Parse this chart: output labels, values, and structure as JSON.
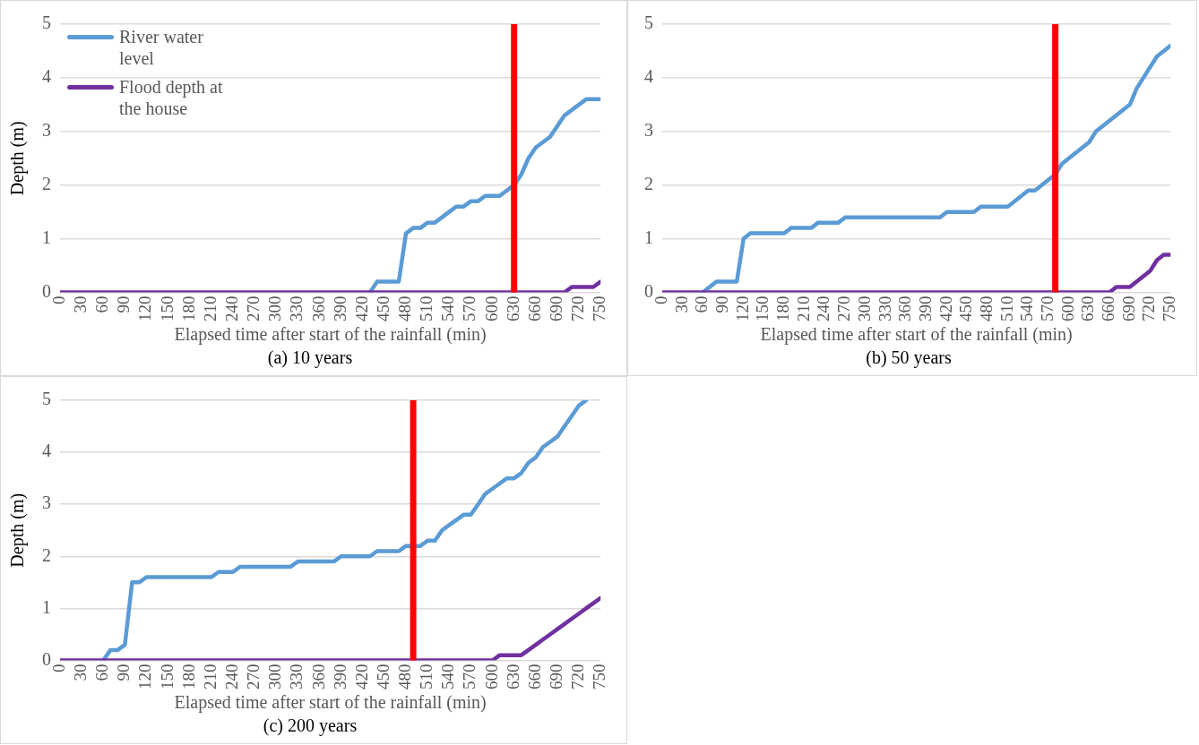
{
  "chart_data": [
    {
      "type": "line",
      "title": "(a) 10 years",
      "xlabel": "Elapsed time after start of the rainfall (min)",
      "ylabel": "Depth (m)",
      "x": [
        0,
        10,
        20,
        30,
        40,
        50,
        60,
        70,
        80,
        90,
        100,
        110,
        120,
        130,
        140,
        150,
        160,
        170,
        180,
        190,
        200,
        210,
        220,
        230,
        240,
        250,
        260,
        270,
        280,
        290,
        300,
        310,
        320,
        330,
        340,
        350,
        360,
        370,
        380,
        390,
        400,
        410,
        420,
        430,
        440,
        450,
        460,
        470,
        480,
        490,
        500,
        510,
        520,
        530,
        540,
        550,
        560,
        570,
        580,
        590,
        600,
        610,
        620,
        630,
        640,
        650,
        660,
        670,
        680,
        690,
        700,
        710,
        720,
        730,
        740,
        750
      ],
      "series": [
        {
          "name": "River water level",
          "color": "#5b9bd5",
          "values": [
            null,
            null,
            null,
            null,
            null,
            null,
            null,
            null,
            null,
            null,
            null,
            null,
            null,
            null,
            null,
            null,
            null,
            null,
            null,
            null,
            null,
            null,
            null,
            null,
            null,
            null,
            null,
            null,
            null,
            null,
            null,
            null,
            null,
            null,
            null,
            null,
            null,
            null,
            null,
            null,
            null,
            null,
            null,
            0,
            0.2,
            0.2,
            0.2,
            0.2,
            1.1,
            1.2,
            1.2,
            1.3,
            1.3,
            1.4,
            1.5,
            1.6,
            1.6,
            1.7,
            1.7,
            1.8,
            1.8,
            1.8,
            1.9,
            2.0,
            2.2,
            2.5,
            2.7,
            2.8,
            2.9,
            3.1,
            3.3,
            3.4,
            3.5,
            3.6,
            3.6,
            3.6
          ]
        },
        {
          "name": "Flood depth at the house",
          "color": "#7030a0",
          "values": [
            0,
            0,
            0,
            0,
            0,
            0,
            0,
            0,
            0,
            0,
            0,
            0,
            0,
            0,
            0,
            0,
            0,
            0,
            0,
            0,
            0,
            0,
            0,
            0,
            0,
            0,
            0,
            0,
            0,
            0,
            0,
            0,
            0,
            0,
            0,
            0,
            0,
            0,
            0,
            0,
            0,
            0,
            0,
            0,
            0,
            0,
            0,
            0,
            0,
            0,
            0,
            0,
            0,
            0,
            0,
            0,
            0,
            0,
            0,
            0,
            0,
            0,
            0,
            0,
            0,
            0,
            0,
            0,
            0,
            0,
            0,
            0.1,
            0.1,
            0.1,
            0.1,
            0.2
          ]
        }
      ],
      "xlim": [
        0,
        750
      ],
      "xticks": [
        0,
        30,
        60,
        90,
        120,
        150,
        180,
        210,
        240,
        270,
        300,
        330,
        360,
        390,
        420,
        450,
        480,
        510,
        540,
        570,
        600,
        630,
        660,
        690,
        720,
        750
      ],
      "ylim": [
        0,
        5
      ],
      "yticks": [
        0,
        1,
        2,
        3,
        4,
        5
      ],
      "grid": "y",
      "legend": "top left",
      "ref_lines": [
        {
          "axis": "x",
          "value": 630,
          "color": "#ff0000"
        }
      ]
    },
    {
      "type": "line",
      "title": "(b) 50 years",
      "xlabel": "Elapsed time after start of the rainfall (min)",
      "x": [
        0,
        10,
        20,
        30,
        40,
        50,
        60,
        70,
        80,
        90,
        100,
        110,
        120,
        130,
        140,
        150,
        160,
        170,
        180,
        190,
        200,
        210,
        220,
        230,
        240,
        250,
        260,
        270,
        280,
        290,
        300,
        310,
        320,
        330,
        340,
        350,
        360,
        370,
        380,
        390,
        400,
        410,
        420,
        430,
        440,
        450,
        460,
        470,
        480,
        490,
        500,
        510,
        520,
        530,
        540,
        550,
        560,
        570,
        580,
        590,
        600,
        610,
        620,
        630,
        640,
        650,
        660,
        670,
        680,
        690,
        700,
        710,
        720,
        730,
        740,
        750
      ],
      "series": [
        {
          "color": "#5b9bd5",
          "values": [
            null,
            null,
            null,
            null,
            null,
            null,
            0,
            0.1,
            0.2,
            0.2,
            0.2,
            0.2,
            1.0,
            1.1,
            1.1,
            1.1,
            1.1,
            1.1,
            1.1,
            1.2,
            1.2,
            1.2,
            1.2,
            1.3,
            1.3,
            1.3,
            1.3,
            1.4,
            1.4,
            1.4,
            1.4,
            1.4,
            1.4,
            1.4,
            1.4,
            1.4,
            1.4,
            1.4,
            1.4,
            1.4,
            1.4,
            1.4,
            1.5,
            1.5,
            1.5,
            1.5,
            1.5,
            1.6,
            1.6,
            1.6,
            1.6,
            1.6,
            1.7,
            1.8,
            1.9,
            1.9,
            2.0,
            2.1,
            2.2,
            2.4,
            2.5,
            2.6,
            2.7,
            2.8,
            3.0,
            3.1,
            3.2,
            3.3,
            3.4,
            3.5,
            3.8,
            4.0,
            4.2,
            4.4,
            4.5,
            4.6
          ]
        },
        {
          "color": "#7030a0",
          "values": [
            0,
            0,
            0,
            0,
            0,
            0,
            0,
            0,
            0,
            0,
            0,
            0,
            0,
            0,
            0,
            0,
            0,
            0,
            0,
            0,
            0,
            0,
            0,
            0,
            0,
            0,
            0,
            0,
            0,
            0,
            0,
            0,
            0,
            0,
            0,
            0,
            0,
            0,
            0,
            0,
            0,
            0,
            0,
            0,
            0,
            0,
            0,
            0,
            0,
            0,
            0,
            0,
            0,
            0,
            0,
            0,
            0,
            0,
            0,
            0,
            0,
            0,
            0,
            0,
            0,
            0,
            0,
            0.1,
            0.1,
            0.1,
            0.2,
            0.3,
            0.4,
            0.6,
            0.7,
            0.7
          ]
        }
      ],
      "xlim": [
        0,
        750
      ],
      "xticks": [
        0,
        30,
        60,
        90,
        120,
        150,
        180,
        210,
        240,
        270,
        300,
        330,
        360,
        390,
        420,
        450,
        480,
        510,
        540,
        570,
        600,
        630,
        660,
        690,
        720,
        750
      ],
      "ylim": [
        0,
        5
      ],
      "yticks": [
        0,
        1,
        2,
        3,
        4,
        5
      ],
      "grid": "y",
      "ref_lines": [
        {
          "axis": "x",
          "value": 580,
          "color": "#ff0000"
        }
      ]
    },
    {
      "type": "line",
      "title": "(c) 200 years",
      "xlabel": "Elapsed time after start of the rainfall (min)",
      "ylabel": "Depth (m)",
      "x": [
        0,
        10,
        20,
        30,
        40,
        50,
        60,
        70,
        80,
        90,
        100,
        110,
        120,
        130,
        140,
        150,
        160,
        170,
        180,
        190,
        200,
        210,
        220,
        230,
        240,
        250,
        260,
        270,
        280,
        290,
        300,
        310,
        320,
        330,
        340,
        350,
        360,
        370,
        380,
        390,
        400,
        410,
        420,
        430,
        440,
        450,
        460,
        470,
        480,
        490,
        500,
        510,
        520,
        530,
        540,
        550,
        560,
        570,
        580,
        590,
        600,
        610,
        620,
        630,
        640,
        650,
        660,
        670,
        680,
        690,
        700,
        710,
        720,
        730,
        740,
        750
      ],
      "series": [
        {
          "color": "#5b9bd5",
          "values": [
            null,
            null,
            null,
            null,
            null,
            null,
            0,
            0.2,
            0.2,
            0.3,
            1.5,
            1.5,
            1.6,
            1.6,
            1.6,
            1.6,
            1.6,
            1.6,
            1.6,
            1.6,
            1.6,
            1.6,
            1.7,
            1.7,
            1.7,
            1.8,
            1.8,
            1.8,
            1.8,
            1.8,
            1.8,
            1.8,
            1.8,
            1.9,
            1.9,
            1.9,
            1.9,
            1.9,
            1.9,
            2.0,
            2.0,
            2.0,
            2.0,
            2.0,
            2.1,
            2.1,
            2.1,
            2.1,
            2.2,
            2.2,
            2.2,
            2.3,
            2.3,
            2.5,
            2.6,
            2.7,
            2.8,
            2.8,
            3.0,
            3.2,
            3.3,
            3.4,
            3.5,
            3.5,
            3.6,
            3.8,
            3.9,
            4.1,
            4.2,
            4.3,
            4.5,
            4.7,
            4.9,
            5.0,
            null,
            null
          ]
        },
        {
          "color": "#7030a0",
          "values": [
            0,
            0,
            0,
            0,
            0,
            0,
            0,
            0,
            0,
            0,
            0,
            0,
            0,
            0,
            0,
            0,
            0,
            0,
            0,
            0,
            0,
            0,
            0,
            0,
            0,
            0,
            0,
            0,
            0,
            0,
            0,
            0,
            0,
            0,
            0,
            0,
            0,
            0,
            0,
            0,
            0,
            0,
            0,
            0,
            0,
            0,
            0,
            0,
            0,
            0,
            0,
            0,
            0,
            0,
            0,
            0,
            0,
            0,
            0,
            0,
            0,
            0.1,
            0.1,
            0.1,
            0.1,
            0.2,
            0.3,
            0.4,
            0.5,
            0.6,
            0.7,
            0.8,
            0.9,
            1.0,
            1.1,
            1.2
          ]
        }
      ],
      "xlim": [
        0,
        750
      ],
      "xticks": [
        0,
        30,
        60,
        90,
        120,
        150,
        180,
        210,
        240,
        270,
        300,
        330,
        360,
        390,
        420,
        450,
        480,
        510,
        540,
        570,
        600,
        630,
        660,
        690,
        720,
        750
      ],
      "ylim": [
        0,
        5
      ],
      "yticks": [
        0,
        1,
        2,
        3,
        4,
        5
      ],
      "grid": "y",
      "ref_lines": [
        {
          "axis": "x",
          "value": 490,
          "color": "#ff0000"
        }
      ]
    }
  ]
}
